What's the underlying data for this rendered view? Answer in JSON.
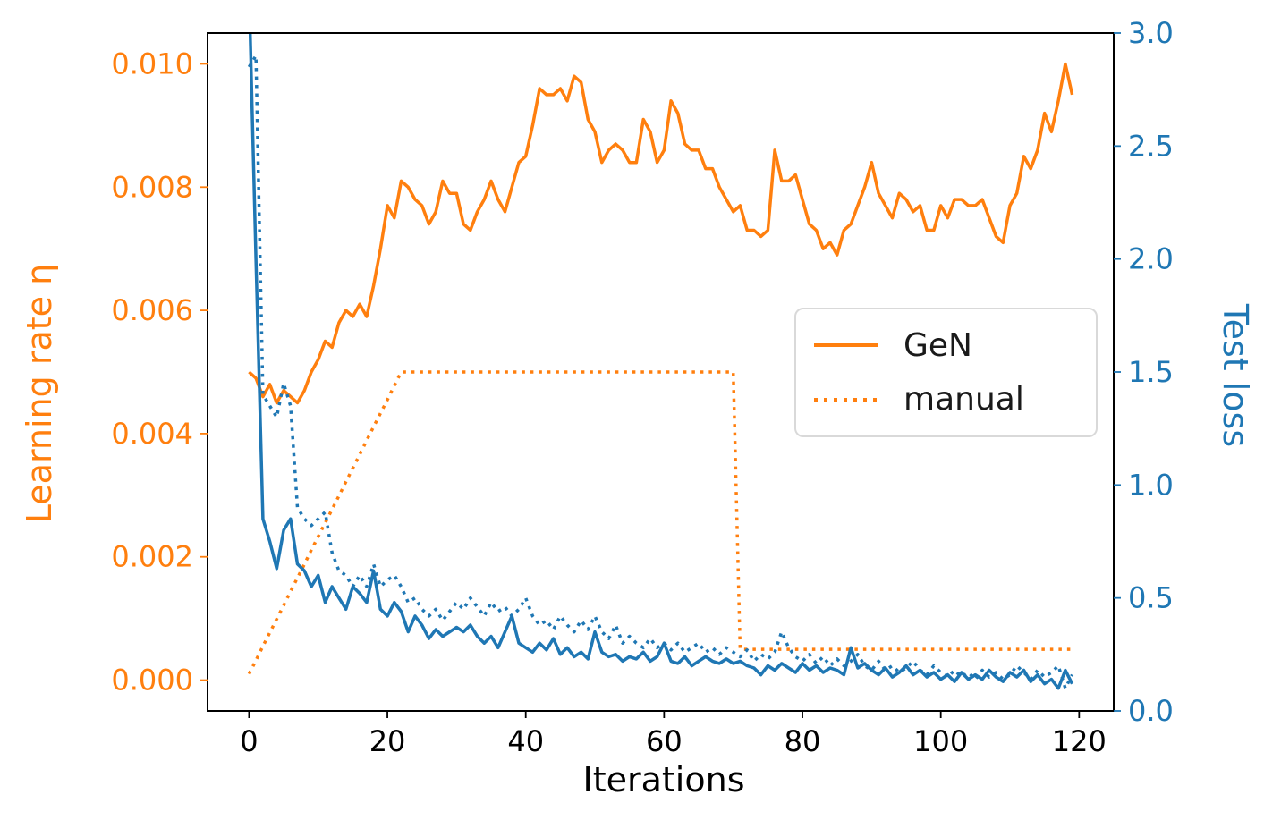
{
  "chart_data": {
    "type": "line",
    "title": "",
    "grid": false,
    "x": {
      "start": 0,
      "step": 1,
      "count": 120
    },
    "x_axis": {
      "label": "Iterations",
      "color": "#000000",
      "range": [
        -6,
        125
      ],
      "ticks": [
        0,
        20,
        40,
        60,
        80,
        100,
        120
      ],
      "tick_labels": [
        "0",
        "20",
        "40",
        "60",
        "80",
        "100",
        "120"
      ]
    },
    "left_axis": {
      "label": "Learning rate η",
      "color": "#ff7f0e",
      "range": [
        -0.0005,
        0.0105
      ],
      "ticks": [
        0,
        0.002,
        0.004,
        0.006,
        0.008,
        0.01
      ],
      "tick_labels": [
        "0.000",
        "0.002",
        "0.004",
        "0.006",
        "0.008",
        "0.010"
      ]
    },
    "right_axis": {
      "label": "Test loss",
      "color": "#1f77b4",
      "range": [
        0,
        3
      ],
      "ticks": [
        0,
        0.5,
        1,
        1.5,
        2,
        2.5,
        3
      ],
      "tick_labels": [
        "0.0",
        "0.5",
        "1.0",
        "1.5",
        "2.0",
        "2.5",
        "3.0"
      ]
    },
    "legend": {
      "position": "center-right",
      "items": [
        {
          "label": "GeN",
          "color": "#ff7f0e",
          "style": "solid"
        },
        {
          "label": "manual",
          "color": "#ff7f0e",
          "style": "dotted"
        }
      ]
    },
    "series": [
      {
        "name": "GeN learning rate",
        "axis": "left",
        "color": "#ff7f0e",
        "style": "solid",
        "values": [
          0.005,
          0.0049,
          0.0046,
          0.0048,
          0.0045,
          0.0047,
          0.0046,
          0.0045,
          0.0047,
          0.005,
          0.0052,
          0.0055,
          0.0054,
          0.0058,
          0.006,
          0.0059,
          0.0061,
          0.0059,
          0.0064,
          0.007,
          0.0077,
          0.0075,
          0.0081,
          0.008,
          0.0078,
          0.0077,
          0.0074,
          0.0076,
          0.0081,
          0.0079,
          0.0079,
          0.0074,
          0.0073,
          0.0076,
          0.0078,
          0.0081,
          0.0078,
          0.0076,
          0.008,
          0.0084,
          0.0085,
          0.009,
          0.0096,
          0.0095,
          0.0095,
          0.0096,
          0.0094,
          0.0098,
          0.0097,
          0.0091,
          0.0089,
          0.0084,
          0.0086,
          0.0087,
          0.0086,
          0.0084,
          0.0084,
          0.0091,
          0.0089,
          0.0084,
          0.0086,
          0.0094,
          0.0092,
          0.0087,
          0.0086,
          0.0086,
          0.0083,
          0.0083,
          0.008,
          0.0078,
          0.0076,
          0.0077,
          0.0073,
          0.0073,
          0.0072,
          0.0073,
          0.0086,
          0.0081,
          0.0081,
          0.0082,
          0.0078,
          0.0074,
          0.0073,
          0.007,
          0.0071,
          0.0069,
          0.0073,
          0.0074,
          0.0077,
          0.008,
          0.0084,
          0.0079,
          0.0077,
          0.0075,
          0.0079,
          0.0078,
          0.0076,
          0.0077,
          0.0073,
          0.0073,
          0.0077,
          0.0075,
          0.0078,
          0.0078,
          0.0077,
          0.0077,
          0.0078,
          0.0075,
          0.0072,
          0.0071,
          0.0077,
          0.0079,
          0.0085,
          0.0083,
          0.0086,
          0.0092,
          0.0089,
          0.0094,
          0.01,
          0.0095
        ]
      },
      {
        "name": "manual learning rate",
        "axis": "left",
        "color": "#ff7f0e",
        "style": "dotted",
        "values": [
          0.0001,
          0.00032,
          0.00055,
          0.00077,
          0.00099,
          0.00121,
          0.00144,
          0.00166,
          0.00188,
          0.00211,
          0.00233,
          0.00255,
          0.00277,
          0.00299,
          0.00322,
          0.00344,
          0.00366,
          0.00389,
          0.00411,
          0.00433,
          0.00455,
          0.00478,
          0.005,
          0.005,
          0.005,
          0.005,
          0.005,
          0.005,
          0.005,
          0.005,
          0.005,
          0.005,
          0.005,
          0.005,
          0.005,
          0.005,
          0.005,
          0.005,
          0.005,
          0.005,
          0.005,
          0.005,
          0.005,
          0.005,
          0.005,
          0.005,
          0.005,
          0.005,
          0.005,
          0.005,
          0.005,
          0.005,
          0.005,
          0.005,
          0.005,
          0.005,
          0.005,
          0.005,
          0.005,
          0.005,
          0.005,
          0.005,
          0.005,
          0.005,
          0.005,
          0.005,
          0.005,
          0.005,
          0.005,
          0.005,
          0.005,
          0.0005,
          0.0005,
          0.0005,
          0.0005,
          0.0005,
          0.0005,
          0.0005,
          0.0005,
          0.0005,
          0.0005,
          0.0005,
          0.0005,
          0.0005,
          0.0005,
          0.0005,
          0.0005,
          0.0005,
          0.0005,
          0.0005,
          0.0005,
          0.0005,
          0.0005,
          0.0005,
          0.0005,
          0.0005,
          0.0005,
          0.0005,
          0.0005,
          0.0005,
          0.0005,
          0.0005,
          0.0005,
          0.0005,
          0.0005,
          0.0005,
          0.0005,
          0.0005,
          0.0005,
          0.0005,
          0.0005,
          0.0005,
          0.0005,
          0.0005,
          0.0005,
          0.0005,
          0.0005,
          0.0005,
          0.0005,
          0.0005
        ]
      },
      {
        "name": "GeN test loss",
        "axis": "right",
        "color": "#1f77b4",
        "style": "solid",
        "values": [
          3.2,
          2.0,
          0.85,
          0.75,
          0.63,
          0.8,
          0.85,
          0.65,
          0.62,
          0.55,
          0.6,
          0.48,
          0.55,
          0.5,
          0.45,
          0.55,
          0.52,
          0.48,
          0.62,
          0.45,
          0.42,
          0.48,
          0.44,
          0.35,
          0.42,
          0.38,
          0.32,
          0.36,
          0.33,
          0.35,
          0.37,
          0.35,
          0.38,
          0.33,
          0.3,
          0.33,
          0.28,
          0.35,
          0.42,
          0.3,
          0.28,
          0.26,
          0.3,
          0.27,
          0.32,
          0.25,
          0.28,
          0.24,
          0.26,
          0.23,
          0.35,
          0.26,
          0.24,
          0.25,
          0.22,
          0.24,
          0.23,
          0.26,
          0.22,
          0.24,
          0.3,
          0.22,
          0.21,
          0.24,
          0.2,
          0.22,
          0.24,
          0.22,
          0.21,
          0.23,
          0.21,
          0.22,
          0.2,
          0.19,
          0.16,
          0.2,
          0.18,
          0.21,
          0.19,
          0.17,
          0.21,
          0.18,
          0.2,
          0.17,
          0.19,
          0.18,
          0.16,
          0.28,
          0.19,
          0.21,
          0.18,
          0.16,
          0.19,
          0.15,
          0.17,
          0.2,
          0.16,
          0.18,
          0.15,
          0.17,
          0.14,
          0.16,
          0.13,
          0.17,
          0.14,
          0.16,
          0.14,
          0.18,
          0.15,
          0.13,
          0.17,
          0.15,
          0.18,
          0.13,
          0.16,
          0.12,
          0.14,
          0.1,
          0.18,
          0.12
        ]
      },
      {
        "name": "manual test loss",
        "axis": "right",
        "color": "#1f77b4",
        "style": "dotted",
        "values": [
          2.85,
          2.9,
          1.4,
          1.35,
          1.3,
          1.45,
          1.35,
          0.9,
          0.85,
          0.82,
          0.85,
          0.88,
          0.7,
          0.62,
          0.6,
          0.55,
          0.6,
          0.55,
          0.65,
          0.55,
          0.58,
          0.6,
          0.55,
          0.48,
          0.5,
          0.45,
          0.42,
          0.45,
          0.4,
          0.44,
          0.48,
          0.45,
          0.5,
          0.46,
          0.42,
          0.48,
          0.44,
          0.46,
          0.42,
          0.45,
          0.5,
          0.42,
          0.38,
          0.4,
          0.36,
          0.42,
          0.38,
          0.35,
          0.4,
          0.36,
          0.42,
          0.35,
          0.32,
          0.38,
          0.3,
          0.33,
          0.3,
          0.28,
          0.32,
          0.28,
          0.3,
          0.27,
          0.3,
          0.26,
          0.28,
          0.3,
          0.26,
          0.28,
          0.25,
          0.28,
          0.26,
          0.24,
          0.27,
          0.22,
          0.25,
          0.23,
          0.26,
          0.35,
          0.28,
          0.24,
          0.22,
          0.25,
          0.21,
          0.24,
          0.2,
          0.23,
          0.2,
          0.22,
          0.25,
          0.2,
          0.18,
          0.22,
          0.18,
          0.2,
          0.17,
          0.19,
          0.22,
          0.18,
          0.16,
          0.2,
          0.17,
          0.15,
          0.18,
          0.15,
          0.17,
          0.14,
          0.18,
          0.15,
          0.17,
          0.14,
          0.16,
          0.2,
          0.17,
          0.14,
          0.18,
          0.15,
          0.17,
          0.2,
          0.1,
          0.16
        ]
      }
    ]
  }
}
